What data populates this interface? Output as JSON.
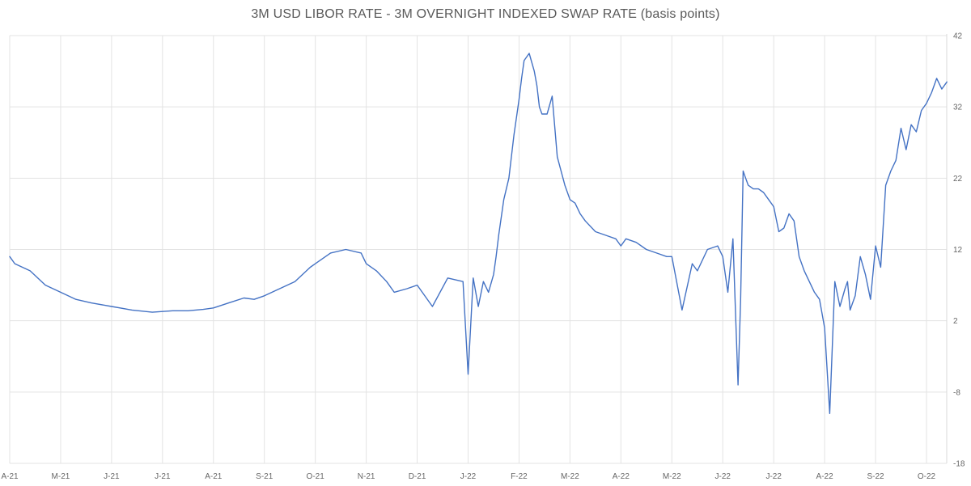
{
  "chart_data": {
    "type": "line",
    "title": "3M USD LIBOR RATE - 3M OVERNIGHT INDEXED SWAP RATE (basis points)",
    "xlabel": "",
    "ylabel": "",
    "ylim": [
      -18,
      42
    ],
    "y_ticks": [
      "42",
      "32",
      "22",
      "12",
      "2",
      "-8",
      "-18"
    ],
    "x_ticks": [
      "A-21",
      "M-21",
      "J-21",
      "J-21",
      "A-21",
      "S-21",
      "O-21",
      "N-21",
      "D-21",
      "J-22",
      "F-22",
      "M-22",
      "A-22",
      "M-22",
      "J-22",
      "J-22",
      "A-22",
      "S-22",
      "O-22"
    ],
    "grid": true,
    "y_axis_side": "right",
    "line_color": "#4472C4",
    "series": [
      {
        "name": "",
        "x_month_index": [
          0,
          0.1,
          0.4,
          0.7,
          1.0,
          1.3,
          1.6,
          2.0,
          2.4,
          2.8,
          3.0,
          3.2,
          3.5,
          3.8,
          4.0,
          4.3,
          4.6,
          4.8,
          5.0,
          5.3,
          5.6,
          5.9,
          6.0,
          6.3,
          6.6,
          6.9,
          7.0,
          7.2,
          7.4,
          7.55,
          7.8,
          8.0,
          8.3,
          8.6,
          8.9,
          9.0,
          9.1,
          9.2,
          9.3,
          9.4,
          9.5,
          9.55,
          9.6,
          9.7,
          9.8,
          9.9,
          10.0,
          10.05,
          10.1,
          10.2,
          10.3,
          10.35,
          10.4,
          10.45,
          10.55,
          10.65,
          10.75,
          10.9,
          11.0,
          11.1,
          11.2,
          11.3,
          11.5,
          11.7,
          11.9,
          12.0,
          12.1,
          12.3,
          12.5,
          12.7,
          12.9,
          13.0,
          13.2,
          13.4,
          13.5,
          13.7,
          13.9,
          14.0,
          14.1,
          14.2,
          14.3,
          14.35,
          14.4,
          14.45,
          14.5,
          14.6,
          14.7,
          14.8,
          14.9,
          15.0,
          15.1,
          15.2,
          15.3,
          15.4,
          15.5,
          15.6,
          15.7,
          15.8,
          15.9,
          16.0,
          16.1,
          16.2,
          16.3,
          16.4,
          16.45,
          16.5,
          16.55,
          16.6,
          16.7,
          16.8,
          16.9,
          17.0,
          17.1,
          17.2,
          17.3,
          17.4,
          17.5,
          17.6,
          17.7,
          17.8,
          17.9,
          18.0,
          18.1,
          18.2,
          18.3,
          18.4
        ],
        "values": [
          11,
          10,
          9,
          7,
          6,
          5,
          4.5,
          4,
          3.5,
          3.2,
          3.3,
          3.4,
          3.4,
          3.6,
          3.8,
          4.5,
          5.2,
          5.0,
          5.5,
          6.5,
          7.5,
          9.5,
          10.0,
          11.5,
          12.0,
          11.5,
          10.0,
          9.0,
          7.5,
          6.0,
          6.5,
          7.0,
          4.0,
          8.0,
          7.5,
          -5.5,
          8.0,
          4.0,
          7.5,
          6.0,
          8.5,
          11.0,
          14.0,
          19.0,
          22.0,
          28.0,
          33.0,
          36.0,
          38.5,
          39.5,
          37.0,
          35.0,
          32.0,
          31.0,
          31.0,
          33.5,
          25.0,
          21.0,
          19.0,
          18.5,
          17.0,
          16.0,
          14.5,
          14.0,
          13.5,
          12.5,
          13.5,
          13.0,
          12.0,
          11.5,
          11.0,
          11.0,
          3.5,
          10.0,
          9.0,
          12.0,
          12.5,
          11.0,
          6.0,
          13.5,
          -7.0,
          5.0,
          23.0,
          22.0,
          21.0,
          20.5,
          20.5,
          20.0,
          19.0,
          18.0,
          14.5,
          15.0,
          17.0,
          16.0,
          11.0,
          9.0,
          7.5,
          6.0,
          5.0,
          1.0,
          -11.0,
          7.5,
          4.0,
          6.5,
          7.5,
          3.5,
          4.5,
          5.5,
          11.0,
          8.5,
          5.0,
          12.5,
          9.5,
          21.0,
          23.0,
          24.5,
          29.0,
          26.0,
          29.5,
          28.5,
          31.5,
          32.5,
          34.0,
          36.0,
          34.5,
          35.5
        ]
      }
    ]
  }
}
